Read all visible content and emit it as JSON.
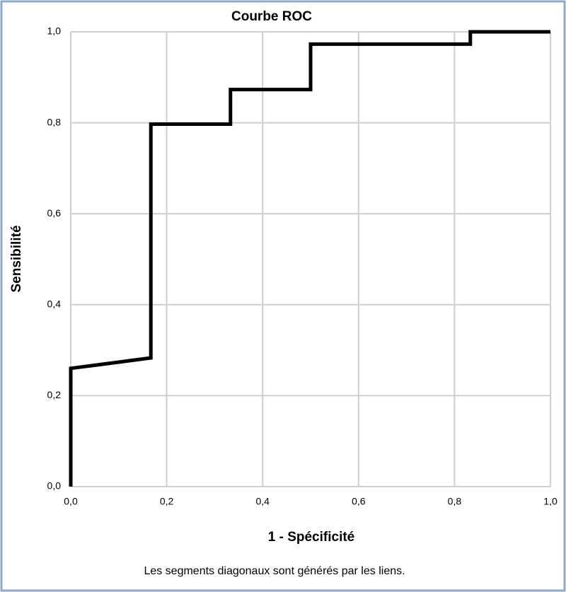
{
  "chart_data": {
    "type": "line",
    "title": "Courbe ROC",
    "x_label": "1 - Spécificité",
    "y_label": "Sensibilité",
    "note": "Les segments diagonaux sont générés par les liens.",
    "x": [
      0,
      0,
      0.167,
      0.167,
      0.333,
      0.333,
      0.5,
      0.5,
      0.833,
      0.833,
      1.0
    ],
    "series": [
      {
        "name": null,
        "color": "#000000",
        "values": [
          0,
          0.26,
          0.283,
          0.797,
          0.797,
          0.873,
          0.873,
          0.973,
          0.973,
          1.0,
          1.0
        ]
      }
    ],
    "xlim": [
      0,
      1
    ],
    "ylim": [
      0,
      1
    ],
    "xticks": [
      {
        "value": 0,
        "label": "0,0"
      },
      {
        "value": 0.2,
        "label": "0,2"
      },
      {
        "value": 0.4,
        "label": "0,4"
      },
      {
        "value": 0.6,
        "label": "0,6"
      },
      {
        "value": 0.8,
        "label": "0,8"
      },
      {
        "value": 1.0,
        "label": "1,0"
      }
    ],
    "yticks": [
      {
        "value": 0,
        "label": "0,0"
      },
      {
        "value": 0.2,
        "label": "0,2"
      },
      {
        "value": 0.4,
        "label": "0,4"
      },
      {
        "value": 0.6,
        "label": "0,6"
      },
      {
        "value": 0.8,
        "label": "0,8"
      },
      {
        "value": 1.0,
        "label": "1,0"
      }
    ],
    "grid": true
  }
}
